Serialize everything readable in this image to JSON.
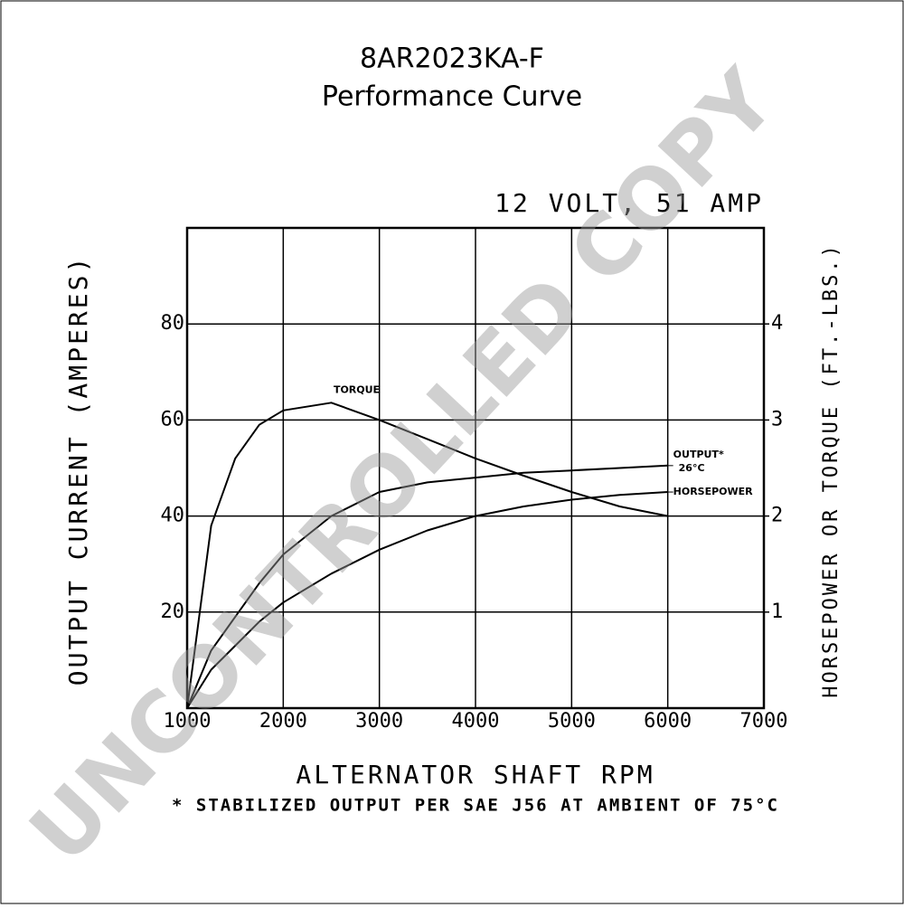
{
  "chart_data": {
    "type": "line",
    "title": "8AR2023KA-F",
    "subtitle": "Performance Curve",
    "rating": "12 VOLT, 51 AMP",
    "xlabel": "ALTERNATOR SHAFT RPM",
    "ylabel": "OUTPUT CURRENT (AMPERES)",
    "y2label": "HORSEPOWER OR TORQUE (FT.-LBS.)",
    "footnote": "* STABILIZED OUTPUT PER SAE J56 AT AMBIENT OF 75°C",
    "watermark": "UNCONTROLLED COPY",
    "x": [
      1000,
      1250,
      1500,
      1750,
      2000,
      2500,
      3000,
      3500,
      4000,
      4500,
      5000,
      5500,
      6000
    ],
    "xlim": [
      1000,
      7000
    ],
    "xticks": [
      1000,
      2000,
      3000,
      4000,
      5000,
      6000,
      7000
    ],
    "ylim": [
      0,
      100
    ],
    "yticks": [
      20,
      40,
      60,
      80
    ],
    "y2lim": [
      0,
      5
    ],
    "y2ticks": [
      1,
      2,
      3,
      4
    ],
    "grid": true,
    "series": [
      {
        "name": "TORQUE",
        "color": "#000000",
        "axis": "y2",
        "values": [
          0,
          1.9,
          2.6,
          2.95,
          3.1,
          3.18,
          3.0,
          2.8,
          2.6,
          2.42,
          2.25,
          2.1,
          2.0
        ]
      },
      {
        "name": "OUTPUT*",
        "note": "26°C",
        "color": "#000000",
        "values": [
          0,
          12,
          19,
          26,
          32,
          40,
          45,
          47,
          48,
          49,
          49.5,
          50,
          50.5
        ]
      },
      {
        "name": "HORSEPOWER",
        "color": "#000000",
        "axis": "y2",
        "values": [
          0,
          0.4,
          0.65,
          0.9,
          1.1,
          1.4,
          1.65,
          1.85,
          2.0,
          2.1,
          2.17,
          2.22,
          2.25
        ]
      }
    ]
  }
}
